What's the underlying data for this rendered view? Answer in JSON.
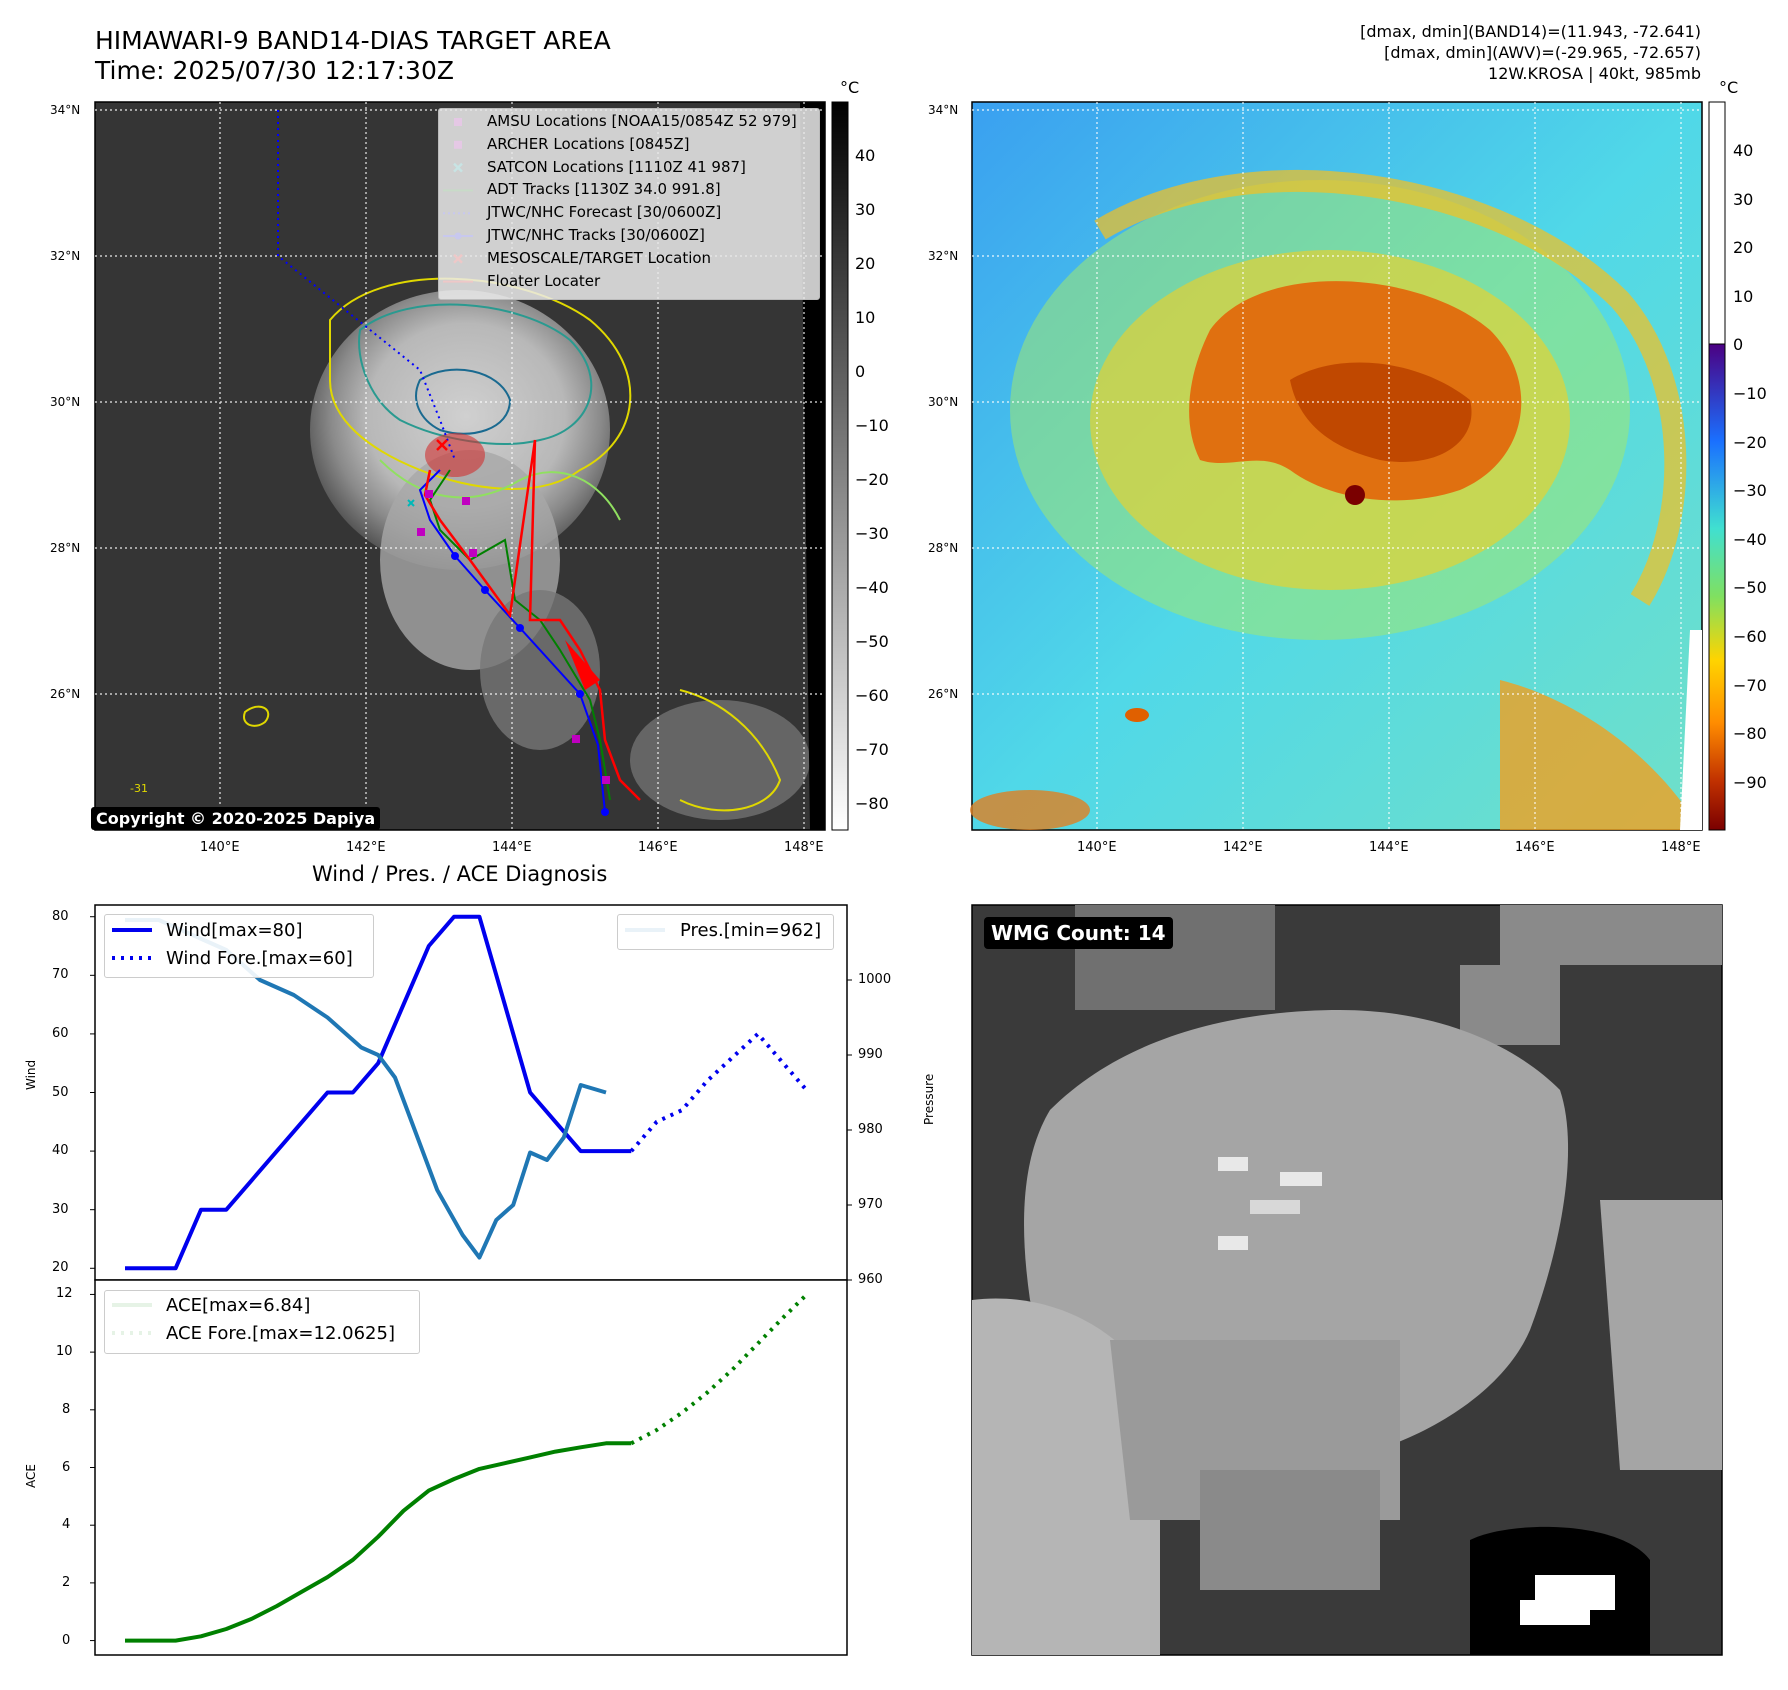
{
  "header": {
    "title_line1": "HIMAWARI-9 BAND14-DIAS TARGET AREA",
    "title_line2": "Time: 2025/07/30 12:17:30Z",
    "info_line1": "[dmax, dmin](BAND14)=(11.943, -72.641)",
    "info_line2": "[dmax, dmin](AWV)=(-29.965, -72.657)",
    "info_line3": "12W.KROSA | 40kt, 985mb"
  },
  "map": {
    "lat_labels": [
      "34°N",
      "32°N",
      "30°N",
      "28°N",
      "26°N"
    ],
    "lon_labels": [
      "140°E",
      "142°E",
      "144°E",
      "146°E",
      "148°E"
    ],
    "copyright": "Copyright © 2020-2025 Dapiya",
    "contour_label": "-31",
    "colorbar_unit": "°C",
    "left_colorbar_ticks": [
      "40",
      "30",
      "20",
      "10",
      "0",
      "−10",
      "−20",
      "−30",
      "−40",
      "−50",
      "−60",
      "−70",
      "−80"
    ],
    "right_colorbar_ticks": [
      "40",
      "30",
      "20",
      "10",
      "0",
      "−10",
      "−20",
      "−30",
      "−40",
      "−50",
      "−60",
      "−70",
      "−80",
      "−90"
    ],
    "legend": [
      {
        "label": "AMSU Locations [NOAA15/0854Z 52 979]",
        "color": "#c000c0",
        "marker": "square"
      },
      {
        "label": "ARCHER Locations [0845Z]",
        "color": "#c000c0",
        "marker": "square"
      },
      {
        "label": "SATCON Locations [1110Z 41 987]",
        "color": "#00b8b8",
        "marker": "x"
      },
      {
        "label": "ADT Tracks [1130Z 34.0 991.8]",
        "color": "#008000",
        "marker": "line"
      },
      {
        "label": "JTWC/NHC Forecast [30/0600Z]",
        "color": "#0000ff",
        "marker": "dotted"
      },
      {
        "label": "JTWC/NHC Tracks [30/0600Z]",
        "color": "#0000ff",
        "marker": "line-dot"
      },
      {
        "label": "MESOSCALE/TARGET Location",
        "color": "#ff0000",
        "marker": "x"
      },
      {
        "label": "Floater Locater",
        "color": "#ff0000",
        "marker": "line"
      }
    ]
  },
  "wmg": {
    "label": "WMG Count: 14"
  },
  "diagnosis": {
    "title": "Wind / Pres. / ACE Diagnosis",
    "legend_wind": "Wind[max=80]",
    "legend_wind_fore": "Wind Fore.[max=60]",
    "legend_pres": "Pres.[min=962]",
    "legend_ace": "ACE[max=6.84]",
    "legend_ace_fore": "ACE Fore.[max=12.0625]",
    "ylabel_wind": "Wind",
    "ylabel_pres": "Pressure",
    "ylabel_ace": "ACE"
  },
  "chart_data": [
    {
      "type": "line",
      "ylabel": "Wind",
      "ylim": [
        18,
        82
      ],
      "y2label": "Pressure",
      "y2lim": [
        960,
        1010
      ],
      "x_range": [
        0,
        82
      ],
      "series": [
        {
          "name": "Wind[max=80]",
          "style": "solid",
          "color": "#0000ee",
          "x": [
            0,
            6,
            9,
            12,
            15,
            18,
            21,
            24,
            27,
            30,
            33,
            36,
            39,
            42,
            45,
            48,
            51,
            54,
            57,
            60
          ],
          "y": [
            20,
            20,
            30,
            30,
            35,
            40,
            45,
            50,
            50,
            55,
            65,
            75,
            80,
            80,
            65,
            50,
            45,
            40,
            40,
            40
          ]
        },
        {
          "name": "Wind Fore.[max=60]",
          "style": "dotted",
          "color": "#0000ee",
          "x": [
            60,
            63,
            66,
            69,
            72,
            75,
            78,
            81
          ],
          "y": [
            40,
            45,
            47,
            52,
            56,
            60,
            55,
            50
          ]
        },
        {
          "name": "Pres.[min=962]",
          "style": "solid",
          "color": "#1f77b4",
          "axis": "right",
          "x": [
            0,
            4,
            8,
            12,
            16,
            20,
            24,
            28,
            30,
            32,
            34,
            37,
            40,
            42,
            44,
            46,
            48,
            50,
            52,
            54,
            57
          ],
          "y": [
            1008,
            1008,
            1006,
            1004,
            1000,
            998,
            995,
            991,
            990,
            987,
            981,
            972,
            966,
            963,
            968,
            970,
            977,
            976,
            979,
            986,
            985
          ]
        }
      ]
    },
    {
      "type": "line",
      "ylabel": "ACE",
      "ylim": [
        -0.5,
        12.5
      ],
      "x_range": [
        0,
        82
      ],
      "series": [
        {
          "name": "ACE[max=6.84]",
          "style": "solid",
          "color": "#008000",
          "x": [
            0,
            3,
            6,
            9,
            12,
            15,
            18,
            21,
            24,
            27,
            30,
            33,
            36,
            39,
            42,
            45,
            48,
            51,
            54,
            57,
            60
          ],
          "y": [
            0,
            0,
            0,
            0.15,
            0.4,
            0.75,
            1.2,
            1.7,
            2.2,
            2.8,
            3.6,
            4.5,
            5.2,
            5.6,
            5.95,
            6.15,
            6.35,
            6.55,
            6.7,
            6.84,
            6.84
          ]
        },
        {
          "name": "ACE Fore.[max=12.0625]",
          "style": "dotted",
          "color": "#008000",
          "x": [
            60,
            63,
            66,
            69,
            72,
            75,
            78,
            81
          ],
          "y": [
            6.84,
            7.3,
            7.9,
            8.6,
            9.4,
            10.3,
            11.2,
            12.06
          ]
        }
      ]
    }
  ]
}
